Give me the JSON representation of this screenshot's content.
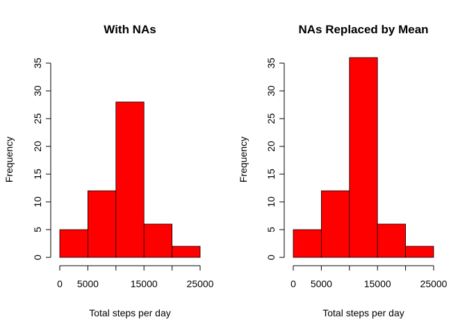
{
  "chart_data": [
    {
      "type": "bar",
      "title": "With NAs",
      "xlabel": "Total steps per day",
      "ylabel": "Frequency",
      "bins": [
        [
          0,
          5000
        ],
        [
          5000,
          10000
        ],
        [
          10000,
          15000
        ],
        [
          15000,
          20000
        ],
        [
          20000,
          25000
        ]
      ],
      "values": [
        5,
        12,
        28,
        6,
        2
      ],
      "xlim": [
        0,
        25000
      ],
      "ylim": [
        0,
        35
      ],
      "x_ticks": [
        "0",
        "5000",
        "15000",
        "25000"
      ],
      "x_tick_values": [
        0,
        5000,
        15000,
        25000
      ],
      "x_minor_ticks": [
        10000,
        20000
      ],
      "y_ticks": [
        "0",
        "5",
        "10",
        "15",
        "20",
        "25",
        "30",
        "35"
      ],
      "y_tick_values": [
        0,
        5,
        10,
        15,
        20,
        25,
        30,
        35
      ],
      "bar_color": "#ff0000",
      "grid": false
    },
    {
      "type": "bar",
      "title": "NAs Replaced by Mean",
      "xlabel": "Total steps per day",
      "ylabel": "Frequency",
      "bins": [
        [
          0,
          5000
        ],
        [
          5000,
          10000
        ],
        [
          10000,
          15000
        ],
        [
          15000,
          20000
        ],
        [
          20000,
          25000
        ]
      ],
      "values": [
        5,
        12,
        36,
        6,
        2
      ],
      "xlim": [
        0,
        25000
      ],
      "ylim": [
        0,
        35
      ],
      "x_ticks": [
        "0",
        "5000",
        "15000",
        "25000"
      ],
      "x_tick_values": [
        0,
        5000,
        15000,
        25000
      ],
      "x_minor_ticks": [
        10000,
        20000
      ],
      "y_ticks": [
        "0",
        "5",
        "10",
        "15",
        "20",
        "25",
        "30",
        "35"
      ],
      "y_tick_values": [
        0,
        5,
        10,
        15,
        20,
        25,
        30,
        35
      ],
      "bar_color": "#ff0000",
      "grid": false
    }
  ]
}
